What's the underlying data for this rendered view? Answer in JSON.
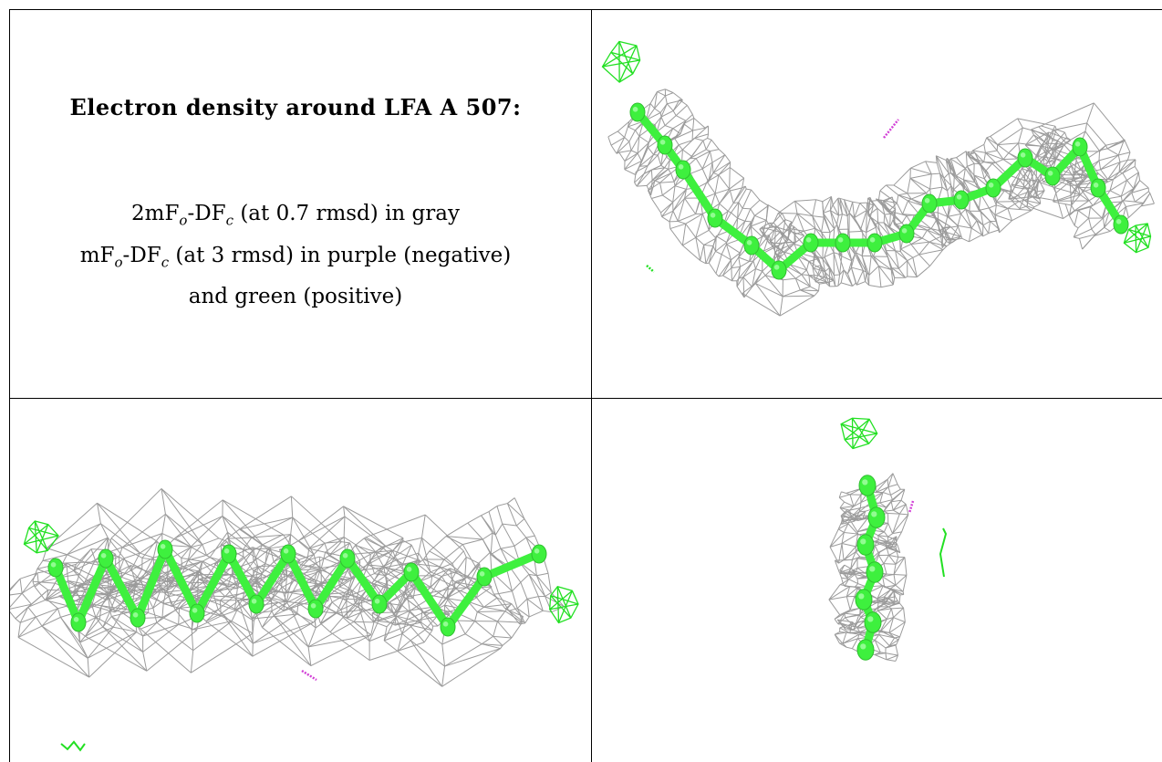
{
  "text": {
    "title": "Electron density around LFA A 507:",
    "line1_pre": "2mF",
    "line1_sub1": "o",
    "line1_mid": "-DF",
    "line1_sub2": "c",
    "line1_post": " (at 0.7 rmsd) in gray",
    "line2_pre": "mF",
    "line2_sub1": "o",
    "line2_mid": "-DF",
    "line2_sub2": "c",
    "line2_post": " (at 3 rmsd) in purple (negative)",
    "line3": "and green (positive)"
  },
  "colors": {
    "mesh_gray": "#8a8a8a",
    "model_green": "#3ef03e",
    "positive_green": "#22e022",
    "negative_purple": "#d23fd6",
    "border": "#000000"
  },
  "panels": [
    {
      "view": "top-right",
      "content": "density-mesh-and-ligand-model"
    },
    {
      "view": "bottom-left",
      "content": "density-mesh-and-ligand-model"
    },
    {
      "view": "bottom-right",
      "content": "density-mesh-and-ligand-model-end-on"
    }
  ]
}
